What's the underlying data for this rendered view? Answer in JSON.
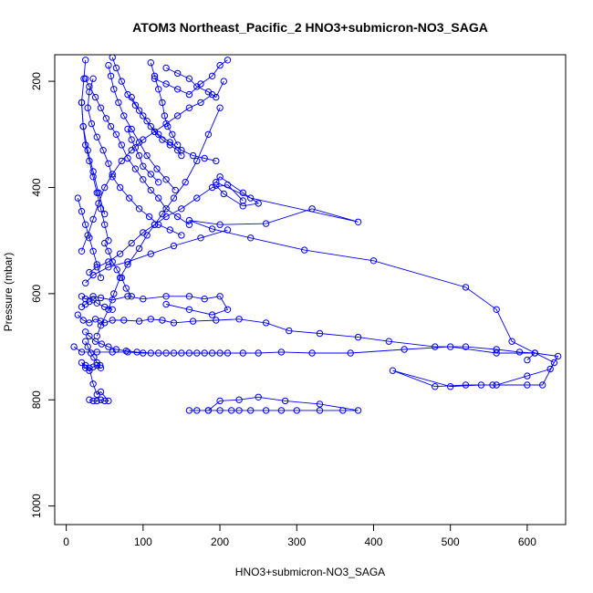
{
  "chart_data": {
    "type": "scatter",
    "title": "ATOM3 Northeast_Pacific_2 HNO3+submicron-NO3_SAGA",
    "xlabel": "HNO3+submicron-NO3_SAGA",
    "ylabel": "Pressure (mbar)",
    "xlim": [
      -15,
      650
    ],
    "ylim": [
      1035,
      150
    ],
    "y_inverted": true,
    "xticks": [
      0,
      100,
      200,
      300,
      400,
      500,
      600
    ],
    "yticks": [
      200,
      400,
      600,
      800,
      1000
    ],
    "grid": false,
    "legend": "none",
    "connected": true,
    "marker": "open-circle",
    "color": "#0000ff",
    "series": [
      {
        "x": [
          10,
          20,
          40,
          60,
          80,
          100,
          120,
          130,
          140,
          150,
          160,
          170,
          180,
          190,
          200,
          210,
          230,
          250,
          280,
          320,
          370,
          440,
          500,
          560,
          610,
          640,
          630,
          600,
          560,
          520,
          480,
          425,
          500,
          540,
          555,
          600,
          620,
          635,
          580,
          560,
          520,
          400,
          310,
          240,
          190,
          160,
          200,
          260,
          320,
          380,
          240,
          195,
          200,
          230,
          250,
          230,
          205,
          195
        ],
        "y": [
          700,
          710,
          710,
          710,
          710,
          712,
          712,
          712,
          712,
          712,
          712,
          712,
          712,
          712,
          712,
          712,
          712,
          712,
          710,
          712,
          712,
          705,
          700,
          712,
          712,
          718,
          742,
          755,
          772,
          772,
          775,
          745,
          775,
          772,
          772,
          772,
          772,
          730,
          690,
          630,
          588,
          538,
          518,
          495,
          478,
          462,
          470,
          468,
          440,
          465,
          420,
          390,
          380,
          410,
          430,
          435,
          412,
          396
        ]
      },
      {
        "x": [
          15,
          22,
          30,
          38,
          45,
          50,
          60,
          75,
          95,
          110,
          125,
          140,
          165,
          195,
          225,
          260,
          290,
          330,
          380,
          420,
          480,
          520,
          560,
          590,
          610,
          600
        ],
        "y": [
          640,
          650,
          655,
          648,
          652,
          655,
          650,
          650,
          652,
          648,
          650,
          655,
          652,
          650,
          648,
          655,
          670,
          675,
          682,
          690,
          700,
          700,
          705,
          710,
          712,
          725
        ]
      },
      {
        "x": [
          160,
          170,
          185,
          200,
          215,
          225,
          240,
          260,
          280,
          300,
          330,
          360,
          380,
          330,
          285,
          250,
          225,
          200,
          185
        ],
        "y": [
          820,
          820,
          820,
          820,
          820,
          820,
          820,
          820,
          820,
          820,
          820,
          820,
          820,
          808,
          802,
          795,
          800,
          802,
          820
        ]
      },
      {
        "x": [
          30,
          35,
          40,
          45,
          50,
          55,
          45,
          40,
          35,
          30,
          25,
          20,
          25,
          30,
          35,
          40,
          45
        ],
        "y": [
          800,
          802,
          802,
          800,
          802,
          802,
          785,
          790,
          770,
          740,
          735,
          730,
          740,
          745,
          738,
          735,
          740
        ]
      },
      {
        "x": [
          20,
          25,
          35,
          45,
          60,
          80,
          100,
          130,
          160,
          180,
          200,
          210,
          190,
          160,
          130
        ],
        "y": [
          605,
          610,
          605,
          608,
          612,
          605,
          610,
          605,
          605,
          610,
          605,
          630,
          640,
          630,
          620
        ]
      },
      {
        "x": [
          25,
          35,
          55,
          80,
          110,
          140,
          175,
          210
        ],
        "y": [
          580,
          565,
          550,
          540,
          525,
          510,
          495,
          480
        ]
      },
      {
        "x": [
          30,
          40,
          55,
          70,
          85,
          100,
          115,
          130,
          150,
          170,
          190,
          210,
          230
        ],
        "y": [
          560,
          550,
          540,
          525,
          505,
          485,
          470,
          455,
          440,
          420,
          400,
          395,
          425
        ]
      },
      {
        "x": [
          20,
          28,
          35,
          42,
          50,
          60,
          72,
          85,
          100,
          115,
          130,
          145,
          160,
          175,
          190
        ],
        "y": [
          520,
          490,
          460,
          430,
          400,
          375,
          350,
          330,
          310,
          295,
          280,
          265,
          250,
          240,
          225
        ]
      },
      {
        "x": [
          40,
          45,
          55,
          62,
          70,
          80,
          95,
          105,
          115,
          125,
          140,
          155,
          170,
          185,
          200
        ],
        "y": [
          680,
          660,
          630,
          600,
          570,
          545,
          515,
          490,
          470,
          450,
          420,
          390,
          350,
          300,
          250
        ]
      },
      {
        "x": [
          25,
          30,
          38,
          45,
          52,
          58,
          65,
          72,
          80,
          90,
          100,
          110,
          120,
          130,
          145,
          160
        ],
        "y": [
          195,
          210,
          230,
          250,
          270,
          285,
          300,
          320,
          345,
          365,
          385,
          405,
          420,
          440,
          455,
          470
        ]
      },
      {
        "x": [
          35,
          30,
          28,
          33,
          40,
          48,
          55,
          60,
          70,
          82,
          95,
          108,
          120,
          135,
          150
        ],
        "y": [
          195,
          220,
          250,
          280,
          305,
          330,
          355,
          380,
          400,
          420,
          440,
          455,
          470,
          480,
          490
        ]
      },
      {
        "x": [
          60,
          65,
          72,
          80,
          90,
          100,
          110,
          120,
          135,
          150,
          165,
          180,
          195
        ],
        "y": [
          155,
          175,
          200,
          225,
          245,
          265,
          285,
          300,
          315,
          330,
          340,
          345,
          350
        ]
      },
      {
        "x": [
          55,
          58,
          62,
          68,
          75,
          85,
          95,
          105,
          118,
          130,
          142
        ],
        "y": [
          170,
          190,
          215,
          240,
          265,
          290,
          315,
          340,
          365,
          385,
          405
        ]
      },
      {
        "x": [
          20,
          22,
          25,
          30,
          35,
          40,
          45,
          50,
          55
        ],
        "y": [
          240,
          285,
          320,
          350,
          380,
          410,
          440,
          470,
          500
        ]
      },
      {
        "x": [
          25,
          23,
          20,
          22,
          28,
          35,
          42,
          50
        ],
        "y": [
          160,
          195,
          240,
          285,
          330,
          370,
          410,
          450
        ]
      },
      {
        "x": [
          15,
          20,
          25,
          30,
          35,
          40,
          45
        ],
        "y": [
          420,
          445,
          470,
          495,
          520,
          545,
          570
        ]
      },
      {
        "x": [
          110,
          115,
          120,
          125,
          128,
          132,
          138,
          145
        ],
        "y": [
          165,
          190,
          215,
          240,
          265,
          285,
          300,
          320
        ]
      },
      {
        "x": [
          85,
          95,
          105,
          115,
          125,
          135,
          145,
          150
        ],
        "y": [
          230,
          255,
          275,
          295,
          310,
          320,
          330,
          340
        ]
      },
      {
        "x": [
          80,
          85,
          90,
          95,
          100,
          110,
          120
        ],
        "y": [
          290,
          310,
          325,
          340,
          360,
          375,
          390
        ]
      },
      {
        "x": [
          50,
          55,
          60,
          66,
          72,
          78,
          85
        ],
        "y": [
          505,
          520,
          540,
          555,
          570,
          590,
          605
        ]
      },
      {
        "x": [
          25,
          30,
          38,
          46,
          55,
          65,
          78,
          92,
          110
        ],
        "y": [
          672,
          680,
          690,
          695,
          700,
          705,
          708,
          710,
          712
        ]
      },
      {
        "x": [
          25,
          28,
          32,
          36,
          40,
          44
        ],
        "y": [
          690,
          700,
          712,
          720,
          730,
          735
        ]
      },
      {
        "x": [
          20,
          25,
          30,
          35,
          40,
          50,
          60
        ],
        "y": [
          625,
          620,
          615,
          612,
          618,
          625,
          630
        ]
      },
      {
        "x": [
          115,
          130,
          145,
          160,
          175,
          190,
          200,
          210
        ],
        "y": [
          195,
          205,
          215,
          225,
          205,
          190,
          170,
          160
        ]
      },
      {
        "x": [
          130,
          145,
          160,
          170,
          185,
          195,
          205
        ],
        "y": [
          175,
          185,
          195,
          210,
          220,
          230,
          200
        ]
      }
    ]
  }
}
